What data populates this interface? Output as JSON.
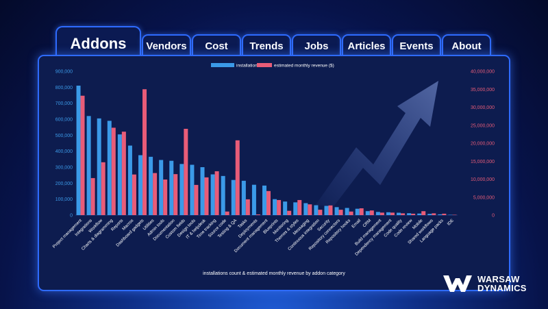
{
  "tabs": [
    {
      "label": "Addons",
      "active": true
    },
    {
      "label": "Vendors"
    },
    {
      "label": "Cost"
    },
    {
      "label": "Trends"
    },
    {
      "label": "Jobs"
    },
    {
      "label": "Articles"
    },
    {
      "label": "Events"
    },
    {
      "label": "About"
    }
  ],
  "chart_data": {
    "type": "bar",
    "title": "installations count & estimated monthly revenue by addon category",
    "legend_position": "top-center",
    "categories": [
      "Project management",
      "Integrations",
      "Workflow",
      "Charts & diagramming",
      "Reports",
      "Macros",
      "Dashboard gadgets",
      "Utilities",
      "Admin tools",
      "Documentation",
      "Custom fields",
      "Design tools",
      "IT & helpdesk",
      "Time tracking",
      "Source code",
      "Testing & QA",
      "Tasks",
      "Deployments",
      "Document management",
      "Blueprints",
      "Monitoring",
      "Themes & styles",
      "Messaging",
      "Continuous integration",
      "Security",
      "Repository connectors",
      "Repository hooks",
      "Email",
      "CRM",
      "Build management",
      "Dependency management",
      "Code quality",
      "Code review",
      "Mobile",
      "Shared workflows",
      "Language packs",
      "IDE"
    ],
    "series": [
      {
        "name": "installations",
        "axis": "left",
        "color": "#3b9ae8",
        "values": [
          810000,
          620000,
          605000,
          590000,
          505000,
          435000,
          375000,
          365000,
          345000,
          340000,
          320000,
          315000,
          300000,
          255000,
          245000,
          220000,
          215000,
          190000,
          185000,
          100000,
          85000,
          80000,
          75000,
          62000,
          58000,
          50000,
          45000,
          40000,
          25000,
          20000,
          18000,
          15000,
          12000,
          10000,
          8000,
          5000,
          2000
        ]
      },
      {
        "name": "estimated monthly revenue ($)",
        "axis": "right",
        "color": "#e85c78",
        "values": [
          33200000,
          10300000,
          14700000,
          24300000,
          23200000,
          11300000,
          35000000,
          11700000,
          9900000,
          11400000,
          24000000,
          8400000,
          10500000,
          12200000,
          1000000,
          20800000,
          4400000,
          200000,
          6700000,
          4200000,
          1200000,
          4200000,
          3000000,
          1500000,
          2700000,
          1500000,
          1000000,
          1900000,
          1300000,
          700000,
          700000,
          500000,
          400000,
          1100000,
          500000,
          400000,
          100000
        ]
      }
    ],
    "y_left": {
      "ylim": [
        0,
        900000
      ],
      "ticks": [
        "0",
        "100,000",
        "200,000",
        "300,000",
        "400,000",
        "500,000",
        "600,000",
        "700,000",
        "800,000",
        "900,000"
      ]
    },
    "y_right": {
      "ylim": [
        0,
        40000000
      ],
      "ticks": [
        "0",
        "5,000,000",
        "10,000,000",
        "15,000,000",
        "20,000,000",
        "25,000,000",
        "30,000,000",
        "35,000,000",
        "40,000,000"
      ]
    }
  },
  "brand": {
    "line1": "WARSAW",
    "line2": "DYNAMICS"
  }
}
